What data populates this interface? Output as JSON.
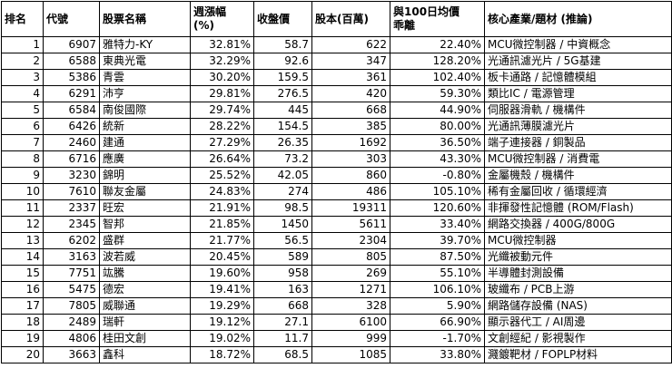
{
  "table": {
    "header": [
      "排名",
      "代號",
      "股票名稱",
      "週漲幅\n(%)",
      "收盤價",
      "股本(百萬)",
      "與100日均價\n乖離",
      "核心產業/題材 (推論)"
    ],
    "rows": [
      [
        "1",
        "6907",
        "雅特力-KY",
        "32.81%",
        "58.7",
        "622",
        "22.40%",
        "MCU微控制器 / 中資概念"
      ],
      [
        "2",
        "6588",
        "東典光電",
        "32.29%",
        "92.6",
        "347",
        "128.20%",
        "光通訊濾光片 / 5G基建"
      ],
      [
        "3",
        "5386",
        "青雲",
        "30.20%",
        "159.5",
        "361",
        "102.40%",
        "板卡通路 / 記憶體模組"
      ],
      [
        "4",
        "6291",
        "沛亨",
        "29.81%",
        "276.5",
        "420",
        "59.30%",
        "類比IC / 電源管理"
      ],
      [
        "5",
        "6584",
        "南俊國際",
        "29.74%",
        "445",
        "668",
        "44.90%",
        "伺服器滑軌 / 機構件"
      ],
      [
        "6",
        "6426",
        "統新",
        "28.22%",
        "154.5",
        "385",
        "80.00%",
        "光通訊薄膜濾光片"
      ],
      [
        "7",
        "2460",
        "建通",
        "27.29%",
        "26.35",
        "1692",
        "36.50%",
        "端子連接器 / 銅製品"
      ],
      [
        "8",
        "6716",
        "應廣",
        "26.64%",
        "73.2",
        "303",
        "43.30%",
        "MCU微控制器 / 消費電"
      ],
      [
        "9",
        "3230",
        "錦明",
        "25.52%",
        "42.05",
        "860",
        "-0.80%",
        "金屬機殼 / 機構件"
      ],
      [
        "10",
        "7610",
        "聯友金屬",
        "24.83%",
        "274",
        "486",
        "105.10%",
        "稀有金屬回收 / 循環經濟"
      ],
      [
        "11",
        "2337",
        "旺宏",
        "21.91%",
        "98.5",
        "19311",
        "120.60%",
        "非揮發性記憶體 (ROM/Flash)"
      ],
      [
        "12",
        "2345",
        "智邦",
        "21.85%",
        "1450",
        "5611",
        "33.40%",
        "網路交換器 / 400G/800G"
      ],
      [
        "13",
        "6202",
        "盛群",
        "21.77%",
        "56.5",
        "2304",
        "39.70%",
        "MCU微控制器"
      ],
      [
        "14",
        "3163",
        "波若威",
        "20.45%",
        "589",
        "805",
        "87.50%",
        "光纖被動元件"
      ],
      [
        "15",
        "7751",
        "竑騰",
        "19.60%",
        "958",
        "269",
        "55.10%",
        "半導體封測設備"
      ],
      [
        "16",
        "5475",
        "德宏",
        "19.41%",
        "163",
        "1271",
        "106.10%",
        "玻纖布 / PCB上游"
      ],
      [
        "17",
        "7805",
        "威聯通",
        "19.29%",
        "668",
        "328",
        "5.90%",
        "網路儲存設備 (NAS)"
      ],
      [
        "18",
        "2489",
        "瑞軒",
        "19.12%",
        "27.1",
        "6100",
        "66.90%",
        "顯示器代工 / AI周邊"
      ],
      [
        "19",
        "4806",
        "桂田文創",
        "19.02%",
        "11.7",
        "999",
        "-1.70%",
        "文創經紀 / 影視製作"
      ],
      [
        "20",
        "3663",
        "鑫科",
        "18.72%",
        "68.5",
        "1085",
        "33.80%",
        "濺鍍靶材 / FOPLP材料"
      ]
    ]
  }
}
